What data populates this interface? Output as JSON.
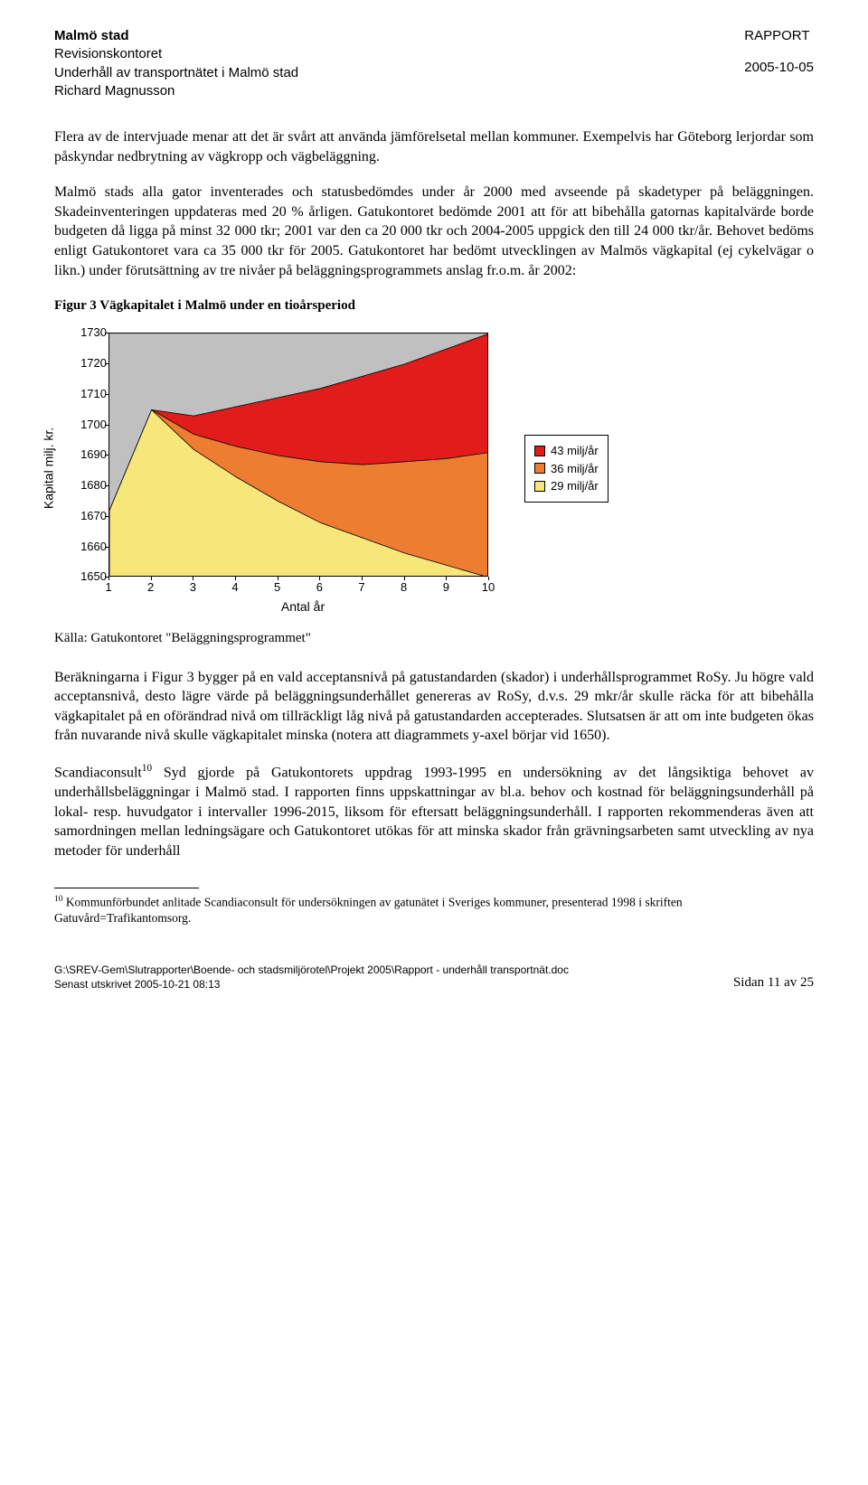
{
  "header": {
    "org": "Malmö stad",
    "dept": "Revisionskontoret",
    "title": "Underhåll av transportnätet i Malmö stad",
    "author": "Richard Magnusson",
    "doc_type": "RAPPORT",
    "date": "2005-10-05"
  },
  "para1": "Flera av de intervjuade menar att det är svårt att använda jämförelsetal mellan kommuner. Exempelvis har Göteborg lerjordar som påskyndar nedbrytning av vägkropp och vägbeläggning.",
  "para2": "Malmö stads alla gator inventerades och statusbedömdes under år 2000 med avseende på skadetyper på beläggningen. Skadeinventeringen uppdateras med 20 % årligen. Gatukontoret bedömde 2001 att för att bibehålla gatornas kapitalvärde borde budgeten då ligga på minst 32 000 tkr; 2001 var den ca 20 000 tkr och 2004-2005 uppgick den till 24 000 tkr/år. Behovet bedöms enligt Gatukontoret vara ca 35 000 tkr för 2005. Gatukontoret har bedömt utvecklingen av Malmös vägkapital (ej cykelvägar o likn.) under förutsättning av tre nivåer på beläggningsprogrammets anslag fr.o.m. år 2002:",
  "figure": {
    "caption": "Figur 3 Vägkapitalet i Malmö under en tioårsperiod",
    "ylabel": "Kapital milj. kr.",
    "xlabel": "Antal år",
    "ymin": 1650,
    "ymax": 1730,
    "ytick_step": 10,
    "xvalues": [
      1,
      2,
      3,
      4,
      5,
      6,
      7,
      8,
      9,
      10
    ],
    "plot_bg": "#c0c0c0",
    "series": [
      {
        "label": "43 milj/år",
        "color": "#e21b1b",
        "values": [
          1672,
          1705,
          1703,
          1706,
          1709,
          1712,
          1716,
          1720,
          1725,
          1730
        ]
      },
      {
        "label": "36 milj/år",
        "color": "#ed7d31",
        "values": [
          1672,
          1705,
          1697,
          1693,
          1690,
          1688,
          1687,
          1688,
          1689,
          1691
        ]
      },
      {
        "label": "29 milj/år",
        "color": "#f7e77a",
        "values": [
          1672,
          1705,
          1692,
          1683,
          1675,
          1668,
          1663,
          1658,
          1654,
          1650
        ]
      }
    ]
  },
  "source": "Källa: Gatukontoret \"Beläggningsprogrammet\"",
  "para3": "Beräkningarna i Figur 3 bygger på en vald acceptansnivå på gatustandarden (skador) i underhållsprogrammet RoSy. Ju högre vald acceptansnivå, desto lägre värde på beläggningsunderhållet genereras av RoSy, d.v.s. 29 mkr/år skulle räcka för att bibehålla vägkapitalet på en oförändrad nivå om tillräckligt låg nivå på gatustandarden accepterades. Slutsatsen är att om inte budgeten ökas från nuvarande nivå skulle vägkapitalet minska (notera att diagrammets y-axel börjar vid 1650).",
  "para4_pre": "Scandiaconsult",
  "para4_sup": "10",
  "para4_post": " Syd gjorde på Gatukontorets uppdrag 1993-1995 en undersökning av det långsiktiga behovet av underhållsbeläggningar i Malmö stad. I rapporten finns uppskattningar av bl.a. behov och kostnad för beläggningsunderhåll på lokal- resp. huvudgator i intervaller 1996-2015, liksom för eftersatt beläggningsunderhåll. I rapporten rekommenderas även att samordningen mellan ledningsägare och Gatukontoret utökas för att minska skador från grävningsarbeten samt utveckling av nya metoder för underhåll",
  "footnote_sup": "10",
  "footnote": " Kommunförbundet anlitade Scandiaconsult för undersökningen av gatunätet i Sveriges kommuner, presenterad 1998 i skriften Gatuvård=Trafikantomsorg.",
  "footer": {
    "path": "G:\\SREV-Gem\\Slutrapporter\\Boende- och stadsmiljörotel\\Projekt 2005\\Rapport - underhåll transportnät.doc",
    "printed": "Senast utskrivet 2005-10-21 08:13",
    "page": "Sidan 11 av 25"
  }
}
